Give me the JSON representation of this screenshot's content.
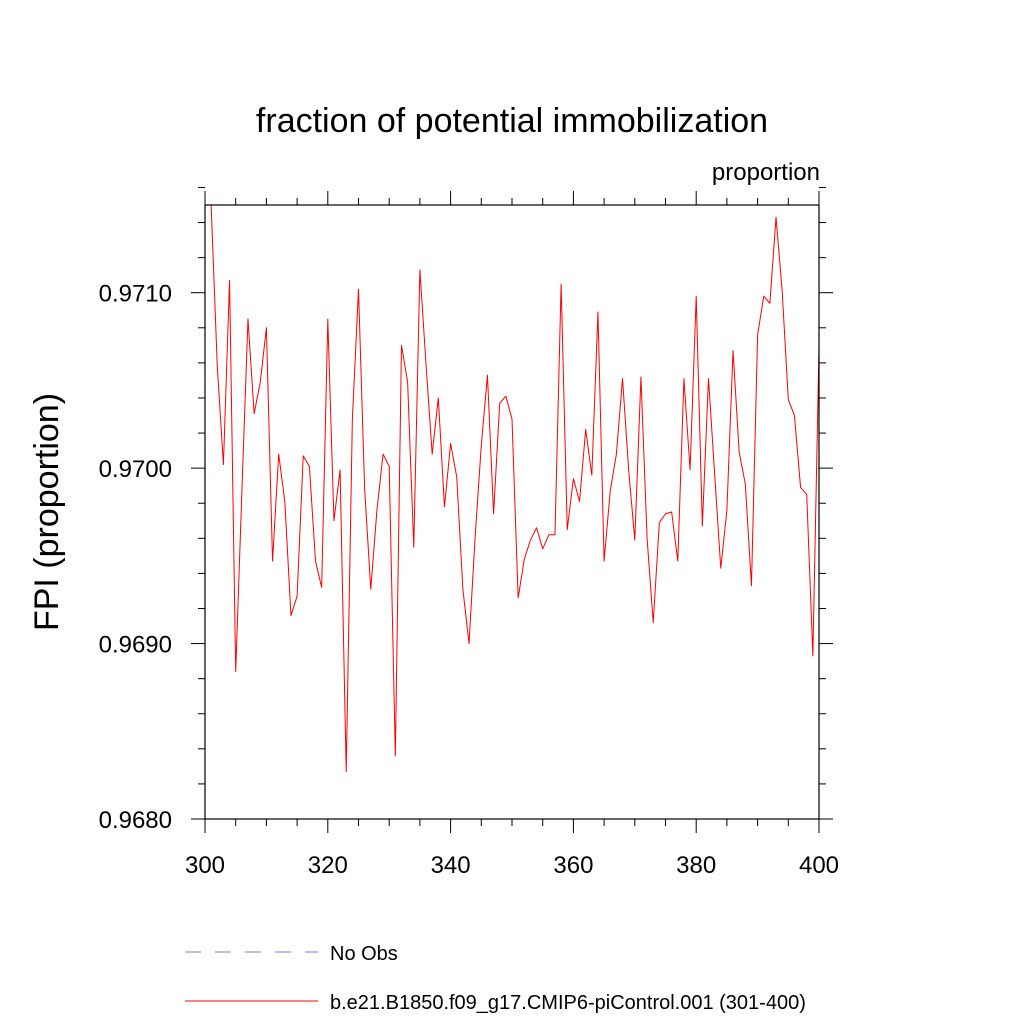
{
  "chart_data": {
    "type": "line",
    "title": "fraction of potential immobilization",
    "units_label": "proportion",
    "ylabel": "FPI  (proportion)",
    "xlabel": "",
    "xlim": [
      300,
      400
    ],
    "ylim": [
      0.968,
      0.9715
    ],
    "x_ticks": [
      300,
      320,
      340,
      360,
      380,
      400
    ],
    "y_ticks": [
      0.968,
      0.969,
      0.97,
      0.971
    ],
    "y_tick_labels": [
      "0.9680",
      "0.9690",
      "0.9700",
      "0.9710"
    ],
    "x_minor_step": 5,
    "y_minor_step": 0.0002,
    "series": [
      {
        "name": "b.e21.B1850.f09_g17.CMIP6-piControl.001 (301-400)",
        "color": "#ff0000",
        "style": "solid",
        "x_start": 301,
        "x_step": 1,
        "values": [
          0.9715,
          0.97058,
          0.97002,
          0.97107,
          0.96884,
          0.96986,
          0.97085,
          0.97031,
          0.97049,
          0.9708,
          0.96947,
          0.97008,
          0.96981,
          0.96916,
          0.96927,
          0.97007,
          0.97001,
          0.96947,
          0.96932,
          0.97085,
          0.9697,
          0.96999,
          0.96827,
          0.97028,
          0.97102,
          0.96988,
          0.96931,
          0.96976,
          0.97008,
          0.97001,
          0.96836,
          0.9707,
          0.97049,
          0.96955,
          0.97113,
          0.97059,
          0.97008,
          0.9704,
          0.96978,
          0.97014,
          0.96995,
          0.96931,
          0.969,
          0.96961,
          0.97013,
          0.97053,
          0.96974,
          0.97037,
          0.97041,
          0.97028,
          0.96926,
          0.96948,
          0.96959,
          0.96966,
          0.96954,
          0.96962,
          0.96962,
          0.97105,
          0.96965,
          0.96994,
          0.96981,
          0.97022,
          0.96996,
          0.97089,
          0.96947,
          0.96987,
          0.97008,
          0.97051,
          0.96999,
          0.96959,
          0.97052,
          0.9696,
          0.96912,
          0.96969,
          0.96974,
          0.96975,
          0.96947,
          0.97051,
          0.96999,
          0.97098,
          0.96967,
          0.97051,
          0.96997,
          0.96943,
          0.96976,
          0.97067,
          0.97009,
          0.96991,
          0.96933,
          0.97076,
          0.97098,
          0.97094,
          0.97143,
          0.97101,
          0.97039,
          0.9703,
          0.96989,
          0.96985,
          0.96893,
          0.97069
        ]
      },
      {
        "name": "No Obs",
        "color": "#7f7fbf",
        "style": "dashed",
        "values": []
      }
    ],
    "legend": [
      {
        "label": "No Obs",
        "color": "#7f7fbf",
        "style": "dashed"
      },
      {
        "label": "b.e21.B1850.f09_g17.CMIP6-piControl.001 (301-400)",
        "color": "#ff0000",
        "style": "solid"
      }
    ],
    "legend_position": "bottom"
  }
}
